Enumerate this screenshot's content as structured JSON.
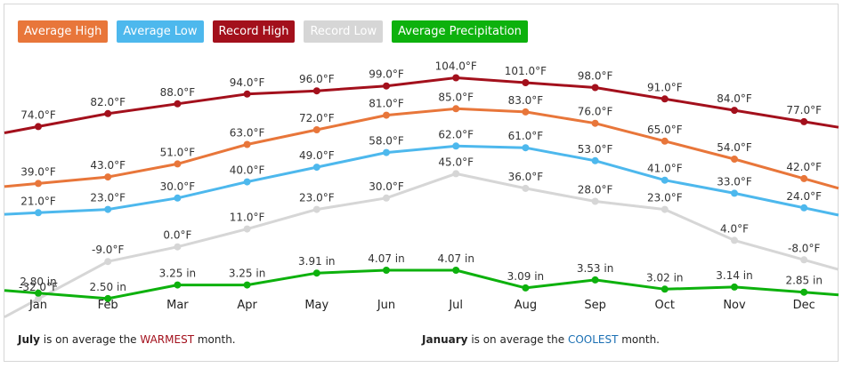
{
  "legend": [
    {
      "label": "Average High",
      "color": "#e8763a"
    },
    {
      "label": "Average Low",
      "color": "#4db8ed"
    },
    {
      "label": "Record High",
      "color": "#a3101c"
    },
    {
      "label": "Record Low",
      "color": "#d6d6d6"
    },
    {
      "label": "Average Precipitation",
      "color": "#0db10d"
    }
  ],
  "chart_data": {
    "type": "line",
    "categories": [
      "Jan",
      "Feb",
      "Mar",
      "Apr",
      "May",
      "Jun",
      "Jul",
      "Aug",
      "Sep",
      "Oct",
      "Nov",
      "Dec"
    ],
    "series": [
      {
        "name": "Average High",
        "color": "#e8763a",
        "values": [
          39,
          43,
          51,
          63,
          72,
          81,
          85,
          83,
          76,
          65,
          54,
          42
        ],
        "labels": [
          "39.0°F",
          "43.0°F",
          "51.0°F",
          "63.0°F",
          "72.0°F",
          "81.0°F",
          "85.0°F",
          "83.0°F",
          "76.0°F",
          "65.0°F",
          "54.0°F",
          "42.0°F"
        ]
      },
      {
        "name": "Average Low",
        "color": "#4db8ed",
        "values": [
          21,
          23,
          30,
          40,
          49,
          58,
          62,
          61,
          53,
          41,
          33,
          24
        ],
        "labels": [
          "21.0°F",
          "23.0°F",
          "30.0°F",
          "40.0°F",
          "49.0°F",
          "58.0°F",
          "62.0°F",
          "61.0°F",
          "53.0°F",
          "41.0°F",
          "33.0°F",
          "24.0°F"
        ]
      },
      {
        "name": "Record High",
        "color": "#a3101c",
        "values": [
          74,
          82,
          88,
          94,
          96,
          99,
          104,
          101,
          98,
          91,
          84,
          77
        ],
        "labels": [
          "74.0°F",
          "82.0°F",
          "88.0°F",
          "94.0°F",
          "96.0°F",
          "99.0°F",
          "104.0°F",
          "101.0°F",
          "98.0°F",
          "91.0°F",
          "84.0°F",
          "77.0°F"
        ]
      },
      {
        "name": "Record Low",
        "color": "#d6d6d6",
        "values": [
          -32,
          -9,
          0,
          11,
          23,
          30,
          45,
          36,
          28,
          23,
          4,
          -8
        ],
        "labels": [
          "-32.0°F",
          "-9.0°F",
          "0.0°F",
          "11.0°F",
          "23.0°F",
          "30.0°F",
          "45.0°F",
          "36.0°F",
          "28.0°F",
          "23.0°F",
          "4.0°F",
          "-8.0°F"
        ]
      },
      {
        "name": "Average Precipitation",
        "color": "#0db10d",
        "values": [
          2.8,
          2.5,
          3.25,
          3.25,
          3.91,
          4.07,
          4.07,
          3.09,
          3.53,
          3.02,
          3.14,
          2.85
        ],
        "labels": [
          "2.80 in",
          "2.50 in",
          "3.25 in",
          "3.25 in",
          "3.91 in",
          "4.07 in",
          "4.07 in",
          "3.09 in",
          "3.53 in",
          "3.02 in",
          "3.14 in",
          "2.85 in"
        ]
      }
    ]
  },
  "footer": {
    "warm_month": "July",
    "warm_mid": " is on average the ",
    "warm_word": "WARMEST",
    "warm_end": " month.",
    "warm_color": "#a3101c",
    "cool_month": "January",
    "cool_mid": " is on average the ",
    "cool_word": "COOLEST",
    "cool_end": " month.",
    "cool_color": "#1a6fb3"
  }
}
